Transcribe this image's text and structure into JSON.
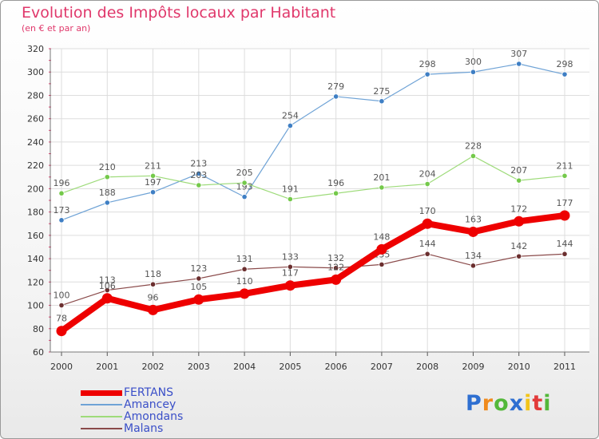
{
  "header": {
    "title": "Evolution des Impôts locaux par Habitant",
    "subtitle": "(en € et par an)"
  },
  "chart_data": {
    "type": "line",
    "x": [
      "2000",
      "2001",
      "2002",
      "2003",
      "2004",
      "2005",
      "2006",
      "2007",
      "2008",
      "2009",
      "2010",
      "2011"
    ],
    "ylim": [
      60,
      320
    ],
    "yticks": [
      60,
      80,
      100,
      120,
      140,
      160,
      180,
      200,
      220,
      240,
      260,
      280,
      300,
      320
    ],
    "grid": true,
    "legend_position": "bottom-left",
    "series": [
      {
        "name": "Amancey",
        "color": "#6fa3d6",
        "marker": "#3f7fc4",
        "width": 1.2,
        "values": [
          173,
          188,
          197,
          213,
          193,
          254,
          279,
          275,
          298,
          300,
          307,
          298
        ]
      },
      {
        "name": "Amondans",
        "color": "#9edb7a",
        "marker": "#74c94a",
        "width": 1.2,
        "values": [
          196,
          210,
          211,
          203,
          205,
          191,
          196,
          201,
          204,
          228,
          207,
          211
        ]
      },
      {
        "name": "Malans",
        "color": "#8a4a4a",
        "marker": "#6b2f2f",
        "width": 1.2,
        "values": [
          100,
          113,
          118,
          123,
          131,
          133,
          132,
          135,
          144,
          134,
          142,
          144
        ]
      },
      {
        "name": "FERTANS",
        "color": "#ee0000",
        "marker": "#ee0000",
        "width": 8,
        "values": [
          78,
          106,
          96,
          105,
          110,
          117,
          122,
          148,
          170,
          163,
          172,
          177
        ]
      }
    ]
  },
  "legend": [
    {
      "name": "FERTANS",
      "color": "#ee0000",
      "thick": true
    },
    {
      "name": "Amancey",
      "color": "#6fa3d6",
      "thick": false
    },
    {
      "name": "Amondans",
      "color": "#9edb7a",
      "thick": false
    },
    {
      "name": "Malans",
      "color": "#8a4a4a",
      "thick": false
    }
  ],
  "logo": {
    "letters": [
      "P",
      "r",
      "o",
      "x",
      "i",
      "t",
      "i"
    ],
    "colors": [
      "#2e6fd1",
      "#f08a1c",
      "#53b83a",
      "#2e6fd1",
      "#f2c418",
      "#e23a3a",
      "#53b83a"
    ]
  }
}
